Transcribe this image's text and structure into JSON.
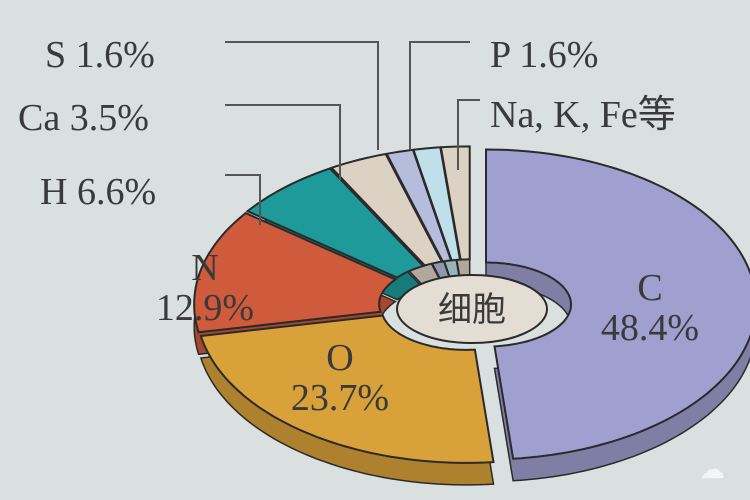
{
  "chart_data": {
    "type": "pie",
    "title": "",
    "center_label": "细胞",
    "slices": [
      {
        "label": "C",
        "value": 48.4,
        "text": "48.4%",
        "color": "#9f9fd0"
      },
      {
        "label": "O",
        "value": 23.7,
        "text": "23.7%",
        "color": "#d8a13a"
      },
      {
        "label": "N",
        "value": 12.9,
        "text": "12.9%",
        "color": "#cf5a3c"
      },
      {
        "label": "H",
        "value": 6.6,
        "text": "6.6%",
        "color": "#1e9a9a"
      },
      {
        "label": "Ca",
        "value": 3.5,
        "text": "3.5%",
        "color": "#dcd2c4"
      },
      {
        "label": "S",
        "value": 1.6,
        "text": "1.6%",
        "color": "#b6bcdc"
      },
      {
        "label": "P",
        "value": 1.6,
        "text": "1.6%",
        "color": "#bfe0ea"
      },
      {
        "label": "Na, K, Fe等",
        "value": 1.7,
        "text": "",
        "color": "#dcd2c4"
      }
    ]
  },
  "watermark": "logo"
}
